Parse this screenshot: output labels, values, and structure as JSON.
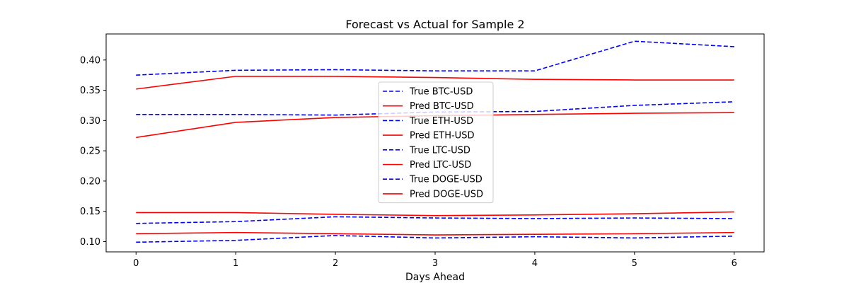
{
  "chart_data": {
    "type": "line",
    "title": "Forecast vs Actual for Sample 2",
    "xlabel": "Days Ahead",
    "ylabel": "",
    "x": [
      0,
      1,
      2,
      3,
      4,
      5,
      6
    ],
    "xlim": [
      -0.3,
      6.3
    ],
    "ylim": [
      0.083,
      0.443
    ],
    "xticks": [
      "0",
      "1",
      "2",
      "3",
      "4",
      "5",
      "6"
    ],
    "yticks": [
      "0.10",
      "0.15",
      "0.20",
      "0.25",
      "0.30",
      "0.35",
      "0.40"
    ],
    "ytick_values": [
      0.1,
      0.15,
      0.2,
      0.25,
      0.3,
      0.35,
      0.4
    ],
    "legend_position": "center",
    "colors": {
      "true": "#0000ff",
      "pred": "#ff0000"
    },
    "series": [
      {
        "name": "True BTC-USD",
        "style": "dashed",
        "color": "#0000ff",
        "values": [
          0.375,
          0.383,
          0.384,
          0.382,
          0.382,
          0.431,
          0.422
        ]
      },
      {
        "name": "Pred BTC-USD",
        "style": "solid",
        "color": "#ff0000",
        "values": [
          0.352,
          0.373,
          0.373,
          0.371,
          0.368,
          0.367,
          0.367
        ]
      },
      {
        "name": "True ETH-USD",
        "style": "dashed",
        "color": "#0000ff",
        "values": [
          0.31,
          0.31,
          0.309,
          0.314,
          0.315,
          0.325,
          0.331
        ]
      },
      {
        "name": "Pred ETH-USD",
        "style": "solid",
        "color": "#ff0000",
        "values": [
          0.272,
          0.297,
          0.305,
          0.308,
          0.31,
          0.312,
          0.313
        ]
      },
      {
        "name": "True LTC-USD",
        "style": "dashed",
        "color": "#0000ff",
        "values": [
          0.13,
          0.133,
          0.141,
          0.139,
          0.138,
          0.139,
          0.138
        ]
      },
      {
        "name": "Pred LTC-USD",
        "style": "solid",
        "color": "#ff0000",
        "values": [
          0.148,
          0.148,
          0.145,
          0.143,
          0.144,
          0.146,
          0.149
        ]
      },
      {
        "name": "True DOGE-USD",
        "style": "dashed",
        "color": "#0000ff",
        "values": [
          0.099,
          0.102,
          0.11,
          0.106,
          0.108,
          0.106,
          0.109
        ]
      },
      {
        "name": "Pred DOGE-USD",
        "style": "solid",
        "color": "#ff0000",
        "values": [
          0.113,
          0.115,
          0.113,
          0.111,
          0.112,
          0.113,
          0.115
        ]
      }
    ]
  }
}
